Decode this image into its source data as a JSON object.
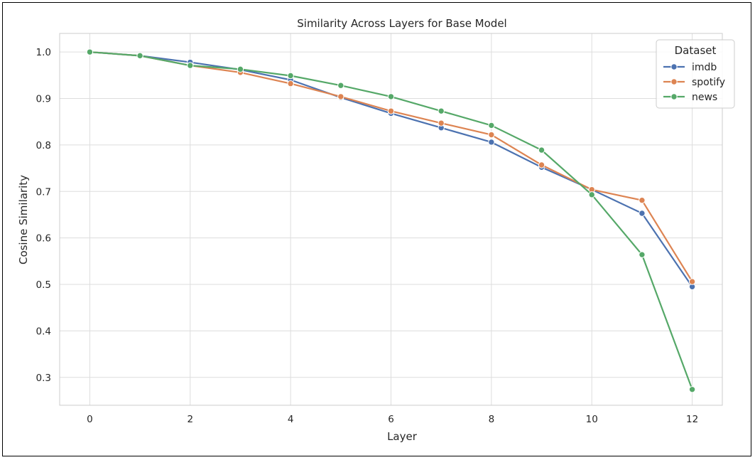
{
  "chart_data": {
    "type": "line",
    "title": "Similarity Across Layers for Base Model",
    "xlabel": "Layer",
    "ylabel": "Cosine Similarity",
    "xlim": [
      -0.6,
      12.6
    ],
    "ylim": [
      0.24,
      1.04
    ],
    "xticks": [
      0,
      2,
      4,
      6,
      8,
      10,
      12
    ],
    "yticks": [
      0.3,
      0.4,
      0.5,
      0.6,
      0.7,
      0.8,
      0.9,
      1.0
    ],
    "ytick_labels": [
      "0.3",
      "0.4",
      "0.5",
      "0.6",
      "0.7",
      "0.8",
      "0.9",
      "1.0"
    ],
    "grid": true,
    "legend": {
      "title": "Dataset",
      "placement": "top-right"
    },
    "x": [
      0,
      1,
      2,
      3,
      4,
      5,
      6,
      7,
      8,
      9,
      10,
      11,
      12
    ],
    "series": [
      {
        "name": "imdb",
        "color": "#4c72b0",
        "values": [
          1.0,
          0.992,
          0.978,
          0.962,
          0.94,
          0.902,
          0.868,
          0.837,
          0.806,
          0.752,
          0.704,
          0.653,
          0.495
        ]
      },
      {
        "name": "spotify",
        "color": "#dd8452",
        "values": [
          1.0,
          0.992,
          0.971,
          0.956,
          0.932,
          0.904,
          0.873,
          0.847,
          0.822,
          0.757,
          0.704,
          0.681,
          0.506
        ]
      },
      {
        "name": "news",
        "color": "#55a868",
        "values": [
          1.0,
          0.992,
          0.971,
          0.963,
          0.949,
          0.928,
          0.904,
          0.873,
          0.842,
          0.789,
          0.693,
          0.564,
          0.274
        ]
      }
    ]
  }
}
